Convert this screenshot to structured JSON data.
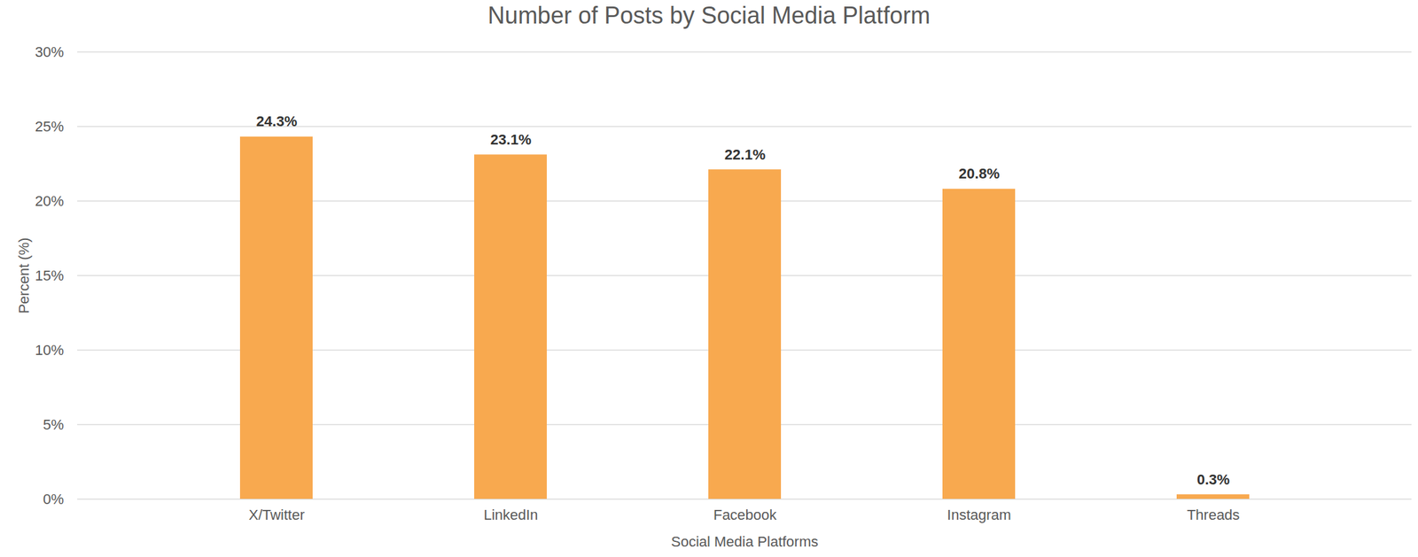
{
  "chart_data": {
    "type": "bar",
    "title": "Number of Posts by Social Media Platform",
    "x_label": "Social Media Platforms",
    "y_label": "Percent (%)",
    "categories": [
      "X/Twitter",
      "LinkedIn",
      "Facebook",
      "Instagram",
      "Threads"
    ],
    "values": [
      24.3,
      23.1,
      22.1,
      20.8,
      0.3
    ],
    "value_labels": [
      "24.3%",
      "23.1%",
      "22.1%",
      "20.8%",
      "0.3%"
    ],
    "color": "#f8a94f",
    "ylim": [
      0,
      30
    ],
    "yticks": [
      {
        "value": 0,
        "label": "0%"
      },
      {
        "value": 5,
        "label": "5%"
      },
      {
        "value": 10,
        "label": "10%"
      },
      {
        "value": 15,
        "label": "15%"
      },
      {
        "value": 20,
        "label": "20%"
      },
      {
        "value": 25,
        "label": "25%"
      },
      {
        "value": 30,
        "label": "30%"
      }
    ],
    "grid": true,
    "data_labels": true
  }
}
